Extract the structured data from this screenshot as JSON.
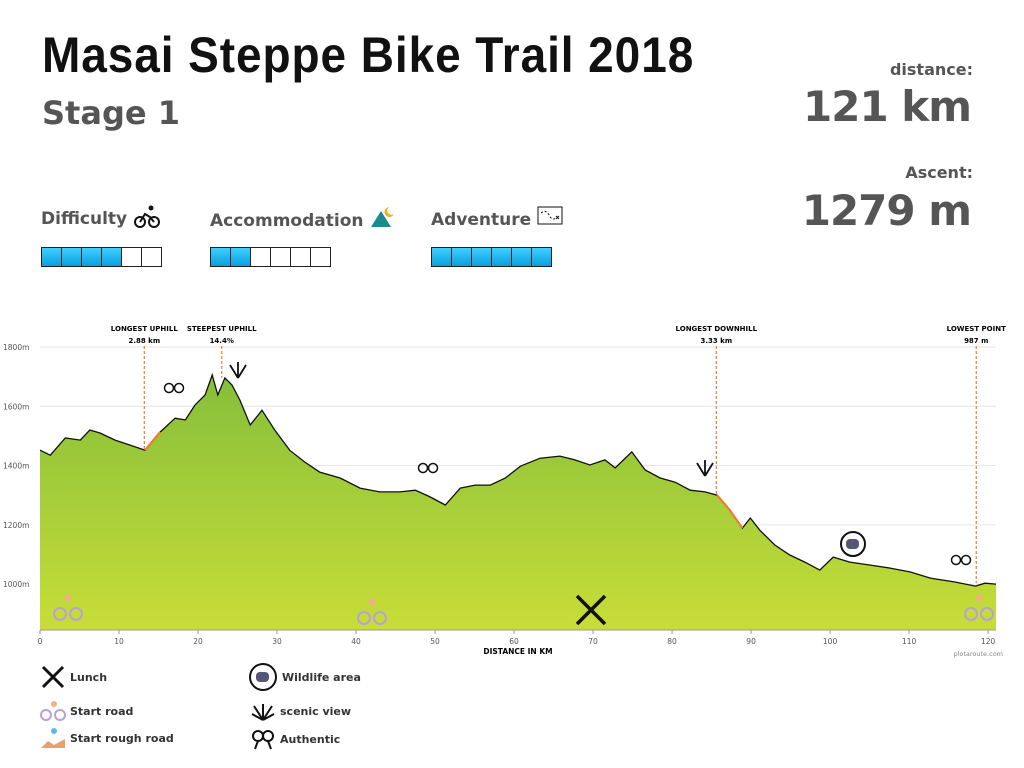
{
  "header": {
    "title": "Masai Steppe Bike Trail 2018",
    "subtitle": "Stage 1"
  },
  "stats": [
    {
      "label": "distance:",
      "value": "121 km"
    },
    {
      "label": "Ascent:",
      "value": "1279 m"
    }
  ],
  "ratings": [
    {
      "label": "Difficulty",
      "value": 4,
      "scale": 6
    },
    {
      "label": "Accommodation",
      "value": 2,
      "scale": 6
    },
    {
      "label": "Adventure",
      "value": 6,
      "scale": 6
    }
  ],
  "chart_data": {
    "type": "area",
    "x_label": "DISTANCE IN KM",
    "credit": "plotaroute.com",
    "x": [
      0,
      1.3,
      3.2,
      5.1,
      6.3,
      7.6,
      9.5,
      11.4,
      13.3,
      15.2,
      17.1,
      18.4,
      19.6,
      20.9,
      21.8,
      22.5,
      23.4,
      24.3,
      25.3,
      26.6,
      28.1,
      29.7,
      31.6,
      33.5,
      35.4,
      38.0,
      40.5,
      43.0,
      45.6,
      47.5,
      49.4,
      51.3,
      53.2,
      55.1,
      57.0,
      58.9,
      60.8,
      63.3,
      65.8,
      67.7,
      69.6,
      71.5,
      72.8,
      74.9,
      76.6,
      78.5,
      80.4,
      82.3,
      84.2,
      85.7,
      87.3,
      88.9,
      89.9,
      91.1,
      93.0,
      94.9,
      96.8,
      98.7,
      100.4,
      102.5,
      105.1,
      107.6,
      110.1,
      112.7,
      115.8,
      118.4,
      119.6,
      121
    ],
    "values": [
      1452,
      1435,
      1493,
      1486,
      1520,
      1510,
      1486,
      1469,
      1452,
      1513,
      1560,
      1554,
      1604,
      1638,
      1706,
      1638,
      1696,
      1672,
      1621,
      1537,
      1587,
      1520,
      1452,
      1412,
      1378,
      1358,
      1324,
      1311,
      1311,
      1317,
      1294,
      1267,
      1324,
      1334,
      1334,
      1358,
      1398,
      1425,
      1432,
      1419,
      1402,
      1419,
      1392,
      1446,
      1385,
      1358,
      1344,
      1317,
      1311,
      1300,
      1250,
      1189,
      1223,
      1182,
      1132,
      1098,
      1074,
      1047,
      1091,
      1074,
      1064,
      1054,
      1041,
      1020,
      1007,
      993,
      1003,
      1000
    ],
    "color": "#8dc63f",
    "line_color": "#111111",
    "xlim": [
      0,
      121
    ],
    "ylim": [
      845,
      1815
    ],
    "xticks": [
      0,
      10,
      20,
      30,
      40,
      50,
      60,
      70,
      80,
      90,
      100,
      110,
      120
    ],
    "yticks": [
      {
        "value": 1000,
        "label": "1000m"
      },
      {
        "value": 1200,
        "label": "1200m"
      },
      {
        "value": 1400,
        "label": "1400m"
      },
      {
        "value": 1600,
        "label": "1600m"
      },
      {
        "value": 1800,
        "label": "1800m"
      }
    ],
    "grid": true,
    "highlights": [
      {
        "from": 13.3,
        "to": 16.2,
        "color": "#f07a30"
      },
      {
        "from": 85.7,
        "to": 89.0,
        "color": "#f07a30"
      }
    ],
    "annotations": [
      {
        "x": 13.2,
        "label": "LONGEST UPHILL",
        "value": "2.88 km"
      },
      {
        "x": 23.0,
        "label": "STEEPEST UPHILL",
        "value": "14.4%"
      },
      {
        "x": 85.6,
        "label": "LONGEST DOWNHILL",
        "value": "3.33 km"
      },
      {
        "x": 118.5,
        "label": "LOWEST POINT",
        "value": "987 m"
      }
    ]
  },
  "legend": [
    "Lunch",
    "Start road",
    "Start rough road",
    "Wildlife area",
    "scenic view",
    "Authentic"
  ]
}
